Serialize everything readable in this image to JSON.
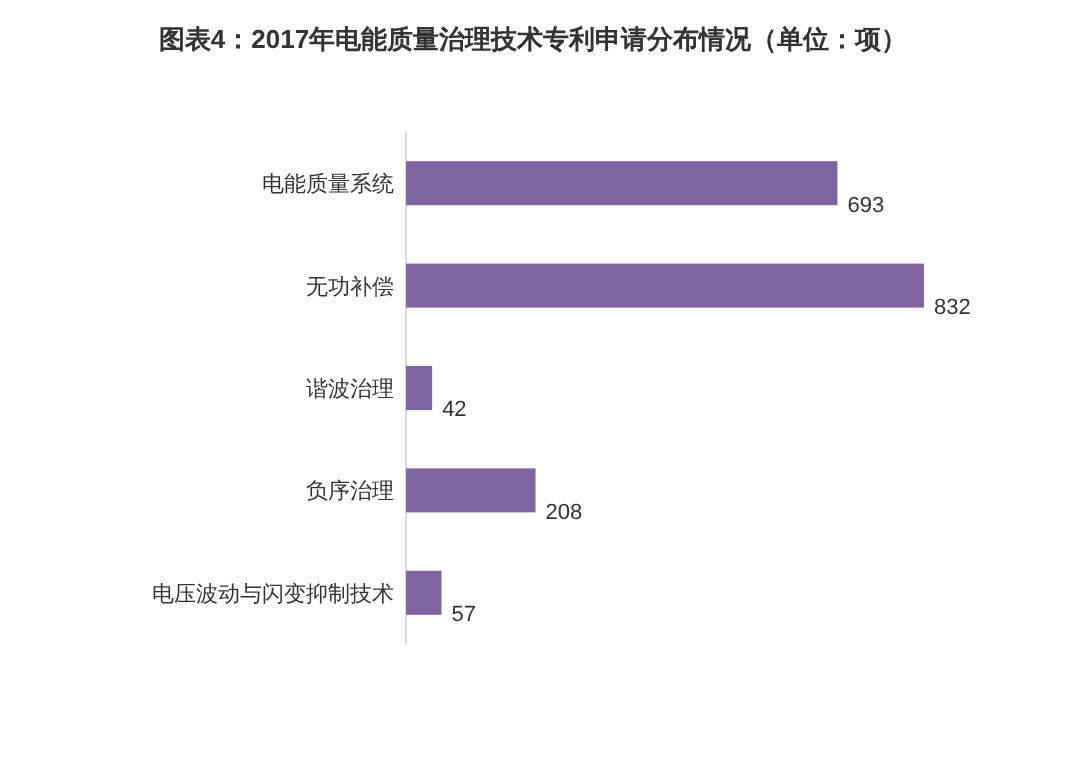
{
  "chart_data": {
    "type": "bar",
    "orientation": "horizontal",
    "title": "图表4：2017年电能质量治理技术专利申请分布情况（单位：项）",
    "categories": [
      "电能质量系统",
      "无功补偿",
      "谐波治理",
      "负序治理",
      "电压波动与闪变抑制技术"
    ],
    "values": [
      693,
      832,
      42,
      208,
      57
    ],
    "color": "#8064a2",
    "data_labels": true
  }
}
